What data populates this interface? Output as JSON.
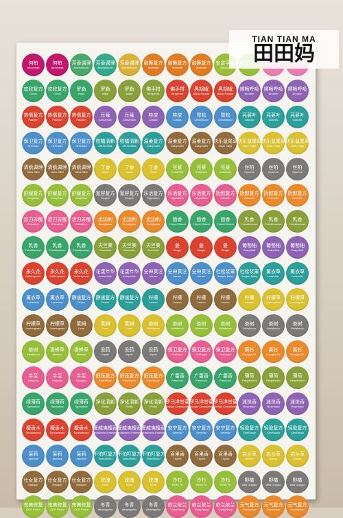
{
  "brand": {
    "latin": "TIAN TIAN MA",
    "cjk": "田田妈"
  },
  "colors": {
    "row1": [
      "#c2186b",
      "#c2186b",
      "#4aa76a",
      "#34a98b",
      "#d8b13a",
      "#e07b22",
      "#e07b22",
      "#e07b22",
      "#9bbf3a",
      "#9bbf3a",
      "#e87fb0",
      "#e87fb0"
    ],
    "pink": "#e65f90",
    "orange": "#ea8a2c",
    "green": "#3aa56b",
    "olive": "#8aa03a",
    "red": "#d9432f",
    "purple": "#8e63b3",
    "blue": "#4c8fc9",
    "teal": "#2c9f9b",
    "brown": "#8f6b3d",
    "yellow": "#d9c130",
    "lime": "#97bf3a",
    "grey": "#7c7a78"
  },
  "stickers": [
    [
      "Arborvitae",
      "何柏"
    ],
    [
      "Arborvitae",
      "何柏"
    ],
    [
      "AromaTouch",
      "芳香调理"
    ],
    [
      "AromaTouch",
      "芳香调理"
    ],
    [
      "AromaTouch",
      "芳香调理"
    ],
    [
      "Motivate",
      "鼓舞复方"
    ],
    [
      "Motivate",
      "鼓舞复方"
    ],
    [
      "Motivate",
      "鼓舞复方"
    ],
    [
      "Balance",
      "安定平衡"
    ],
    [
      "Balance",
      "安定平衡"
    ],
    [
      "Balance",
      "安定平衡"
    ],
    [
      "Cheer",
      "欢欣复方"
    ],
    [
      "Cheer",
      "欢欣复方"
    ],
    [
      "Cheer",
      "欢欣复方"
    ],
    [
      "Basil",
      "罗勒"
    ],
    [
      "Basil",
      "罗勒"
    ],
    [
      "Basil",
      "罗勒"
    ],
    [
      "Bergamot",
      "佛手柑"
    ],
    [
      "Bergamot",
      "佛手柑"
    ],
    [
      "Black Pepper",
      "黑胡椒"
    ],
    [
      "Black Pepper",
      "黑胡椒"
    ],
    [
      "Breathe",
      "顺畅呼吸"
    ],
    [
      "Breathe",
      "顺畅呼吸"
    ],
    [
      "Breathe",
      "顺畅呼吸"
    ],
    [
      "Passion",
      "热情复方"
    ],
    [
      "Passion",
      "热情复方"
    ],
    [
      "Passion",
      "热情复方"
    ],
    [
      "Cardamom",
      "豆蔻"
    ],
    [
      "Cardamom",
      "豆蔻"
    ],
    [
      "Cassia",
      "桂皮"
    ],
    [
      "Cassia",
      "桂皮"
    ],
    [
      "Cedarwood",
      "雪松"
    ],
    [
      "Cedarwood",
      "雪松"
    ],
    [
      "Cilantro",
      "芫荽叶"
    ],
    [
      "Cilantro",
      "芫荽叶"
    ],
    [
      "Cilantro",
      "芫荽叶"
    ],
    [
      "OnGuard",
      "保卫复方"
    ],
    [
      "OnGuard",
      "保卫复方"
    ],
    [
      "OnGuard",
      "保卫复方"
    ],
    [
      "Citrus Bliss",
      "柑橘清新"
    ],
    [
      "Citrus Bliss",
      "柑橘清新"
    ],
    [
      "ClaryCalm",
      "温柔复方"
    ],
    [
      "ClaryCalm",
      "温柔复方"
    ],
    [
      "ClaryCalm",
      "温柔复方"
    ],
    [
      "Clary Sage",
      "快乐鼠尾草"
    ],
    [
      "Clary Sage",
      "快乐鼠尾草"
    ],
    [
      "Clary Sage",
      "快乐鼠尾草"
    ],
    [
      "Clary Sage",
      "快乐鼠尾草"
    ],
    [
      "Clear Skin",
      "清肌调理"
    ],
    [
      "Clear Skin",
      "清肌调理"
    ],
    [
      "Clear Skin",
      "清肌调理"
    ],
    [
      "Clove",
      "丁香"
    ],
    [
      "Clove",
      "丁香"
    ],
    [
      "Clove",
      "丁香"
    ],
    [
      "Coriander",
      "芫荽"
    ],
    [
      "Coriander",
      "芫荽"
    ],
    [
      "Coriander",
      "芫荽"
    ],
    [
      "Cypress",
      "丝柏"
    ],
    [
      "Cypress",
      "丝柏"
    ],
    [
      "Cypress",
      "丝柏"
    ],
    [
      "DeepBlue",
      "舒缓复方"
    ],
    [
      "DeepBlue",
      "舒缓复方"
    ],
    [
      "DeepBlue",
      "舒缓复方"
    ],
    [
      "Forgive",
      "宽容复方"
    ],
    [
      "Forgive",
      "宽容复方"
    ],
    [
      "DigestZen",
      "乐活复方"
    ],
    [
      "DigestZen",
      "乐活复方"
    ],
    [
      "DigestZen",
      "乐活复方"
    ],
    [
      "Console",
      "抚慰复方"
    ],
    [
      "Console",
      "抚慰复方"
    ],
    [
      "Console",
      "抚慰复方"
    ],
    [
      "Console",
      "抚慰复方"
    ],
    [
      "Elevation",
      "活力苏醒"
    ],
    [
      "Elevation",
      "活力苏醒"
    ],
    [
      "Elevation",
      "活力苏醒"
    ],
    [
      "Eucalyptus",
      "尤加利"
    ],
    [
      "Eucalyptus",
      "尤加利"
    ],
    [
      "Eucalyptus",
      "尤加利"
    ],
    [
      "Fennel Sweet",
      "茴香"
    ],
    [
      "Fennel Sweet",
      "茴香"
    ],
    [
      "Fennel Sweet",
      "茴香"
    ],
    [
      "Frankincense",
      "乳香"
    ],
    [
      "Frankincense",
      "乳香"
    ],
    [
      "Frankincense",
      "乳香"
    ],
    [
      "Frankincense",
      "乳香"
    ],
    [
      "Frankincense",
      "乳香"
    ],
    [
      "Frankincense",
      "乳香"
    ],
    [
      "Geranium",
      "天竺葵"
    ],
    [
      "Geranium",
      "天竺葵"
    ],
    [
      "Geranium",
      "天竺葵"
    ],
    [
      "Ginger",
      "姜"
    ],
    [
      "Ginger",
      "姜"
    ],
    [
      "Ginger",
      "姜"
    ],
    [
      "Grapefruit",
      "葡萄柚"
    ],
    [
      "Grapefruit",
      "葡萄柚"
    ],
    [
      "Grapefruit",
      "葡萄柚"
    ],
    [
      "Helichrysum",
      "永久花"
    ],
    [
      "Helichrysum",
      "永久花"
    ],
    [
      "Helichrysum",
      "永久花"
    ],
    [
      "Immortelle",
      "花漾年华"
    ],
    [
      "Immortelle",
      "花漾年华"
    ],
    [
      "Intune",
      "全神贯注"
    ],
    [
      "Intune",
      "全神贯注"
    ],
    [
      "Intune",
      "全神贯注"
    ],
    [
      "Juniper Berry",
      "杜松浆果"
    ],
    [
      "Juniper Berry",
      "杜松浆果"
    ],
    [
      "Lavender",
      "薰衣草"
    ],
    [
      "Lavender",
      "薰衣草"
    ],
    [
      "Lavender",
      "薰衣草"
    ],
    [
      "Lavender",
      "薰衣草"
    ],
    [
      "Peace",
      "静谧复方"
    ],
    [
      "Peace",
      "静谧复方"
    ],
    [
      "Peace",
      "静谧复方"
    ],
    [
      "Lemon",
      "柠檬"
    ],
    [
      "Lemon",
      "柠檬"
    ],
    [
      "Lemon",
      "柠檬"
    ],
    [
      "Lemon",
      "柠檬"
    ],
    [
      "Lemon",
      "柠檬"
    ],
    [
      "Lemongrass",
      "柠檬草"
    ],
    [
      "Lemongrass",
      "柠檬草"
    ],
    [
      "Lemongrass",
      "柠檬草"
    ],
    [
      "Lemongrass",
      "柠檬草"
    ],
    [
      "Lime",
      "莱姆"
    ],
    [
      "Lime",
      "莱姆"
    ],
    [
      "Lime",
      "莱姆"
    ],
    [
      "Melaleuca",
      "茶树"
    ],
    [
      "Melaleuca",
      "茶树"
    ],
    [
      "Melaleuca",
      "茶树"
    ],
    [
      "Melaleuca",
      "茶树"
    ],
    [
      "Melaleuca",
      "茶树"
    ],
    [
      "Melaleuca",
      "茶树"
    ],
    [
      "Melaleuca",
      "茶树"
    ],
    [
      "Melaleuca",
      "茶树"
    ],
    [
      "Melissa",
      "香蜂草"
    ],
    [
      "Melissa",
      "香蜂草"
    ],
    [
      "Myrrh",
      "没药"
    ],
    [
      "Myrrh",
      "没药"
    ],
    [
      "Myrrh",
      "没药"
    ],
    [
      "OnGuard",
      "保卫复方"
    ],
    [
      "OnGuard",
      "保卫复方"
    ],
    [
      "OnGuard",
      "保卫复方"
    ],
    [
      "Douglas Fir",
      "黄杉"
    ],
    [
      "Douglas Fir",
      "黄杉"
    ],
    [
      "Douglas Fir",
      "黄杉"
    ],
    [
      "Oregano",
      "牛至"
    ],
    [
      "Oregano",
      "牛至"
    ],
    [
      "Oregano",
      "牛至"
    ],
    [
      "PastTense",
      "舒压复方"
    ],
    [
      "PastTense",
      "舒压复方"
    ],
    [
      "PastTense",
      "舒压复方"
    ],
    [
      "Patchouli",
      "广藿香"
    ],
    [
      "Patchouli",
      "广藿香"
    ],
    [
      "Patchouli",
      "广藿香"
    ],
    [
      "Peppermint",
      "薄荷"
    ],
    [
      "Peppermint",
      "薄荷"
    ],
    [
      "Peppermint",
      "薄荷"
    ],
    [
      "Spearmint",
      "绿薄荷"
    ],
    [
      "Spearmint",
      "绿薄荷"
    ],
    [
      "Spearmint",
      "绿薄荷"
    ],
    [
      "Purify",
      "净化清新"
    ],
    [
      "Purify",
      "净化清新"
    ],
    [
      "Purify",
      "净化清新"
    ],
    [
      "Roman Chamomile",
      "罗马洋甘菊"
    ],
    [
      "Roman Chamomile",
      "罗马洋甘菊"
    ],
    [
      "Roman Chamomile",
      "罗马洋甘菊"
    ],
    [
      "Rosemary",
      "迷迭香"
    ],
    [
      "Rosemary",
      "迷迭香"
    ],
    [
      "Rosemary",
      "迷迭香"
    ],
    [
      "Sandalwood",
      "檀香木"
    ],
    [
      "Sandalwood",
      "檀香木"
    ],
    [
      "Sandalwood",
      "檀香木"
    ],
    [
      "Sandalwood (Hawaiian)",
      "夏威夷檀香"
    ],
    [
      "Sandalwood (Hawaiian)",
      "夏威夷檀香"
    ],
    [
      "Sandalwood (Hawaiian)",
      "夏威夷檀香"
    ],
    [
      "Serenity",
      "安宁复方"
    ],
    [
      "Serenity",
      "安宁复方"
    ],
    [
      "Serenity",
      "安宁复方"
    ],
    [
      "SlimSassy",
      "轻盈复方"
    ],
    [
      "SlimSassy",
      "轻盈复方"
    ],
    [
      "SlimSassy",
      "轻盈复方"
    ],
    [
      "Jasmine",
      "茉莉"
    ],
    [
      "Jasmine",
      "茉莉"
    ],
    [
      "Jasmine",
      "茉莉"
    ],
    [
      "TerraShield",
      "不怕叮复方"
    ],
    [
      "TerraShield",
      "不怕叮复方"
    ],
    [
      "TerraShield",
      "不怕叮复方"
    ],
    [
      "Thyme",
      "百里香"
    ],
    [
      "Thyme",
      "百里香"
    ],
    [
      "Thyme",
      "百里香"
    ],
    [
      "Vetiver",
      "岩兰草"
    ],
    [
      "Vetiver",
      "岩兰草"
    ],
    [
      "Vetiver",
      "岩兰草"
    ],
    [
      "Whisper",
      "仕女复方"
    ],
    [
      "Whisper",
      "仕女复方"
    ],
    [
      "Whisper",
      "仕女复方"
    ],
    [
      "Rose",
      "玫瑰"
    ],
    [
      "Rose",
      "玫瑰"
    ],
    [
      "Rose",
      "玫瑰"
    ],
    [
      "White Fir",
      "冷杉"
    ],
    [
      "White Fir",
      "冷杉"
    ],
    [
      "White Fir",
      "冷杉"
    ],
    [
      "Wild Orange",
      "野橘"
    ],
    [
      "Wild Orange",
      "野橘"
    ],
    [
      "Wild Orange",
      "野橘"
    ],
    [
      "DDR Prime",
      "完美修复"
    ],
    [
      "DDR Prime",
      "完美修复"
    ],
    [
      "DDR Prime",
      "完美修复"
    ],
    [
      "Wintergreen",
      "冬青"
    ],
    [
      "Wintergreen",
      "冬青"
    ],
    [
      "Wintergreen",
      "冬青"
    ],
    [
      "YlangYlang",
      "依兰依兰"
    ],
    [
      "YlangYlang",
      "依兰依兰"
    ],
    [
      "YlangYlang",
      "依兰依兰"
    ],
    [
      "Zendocrine",
      "元气复方"
    ],
    [
      "Zendocrine",
      "元气复方"
    ],
    [
      "Zendocrine",
      "元气复方"
    ]
  ]
}
